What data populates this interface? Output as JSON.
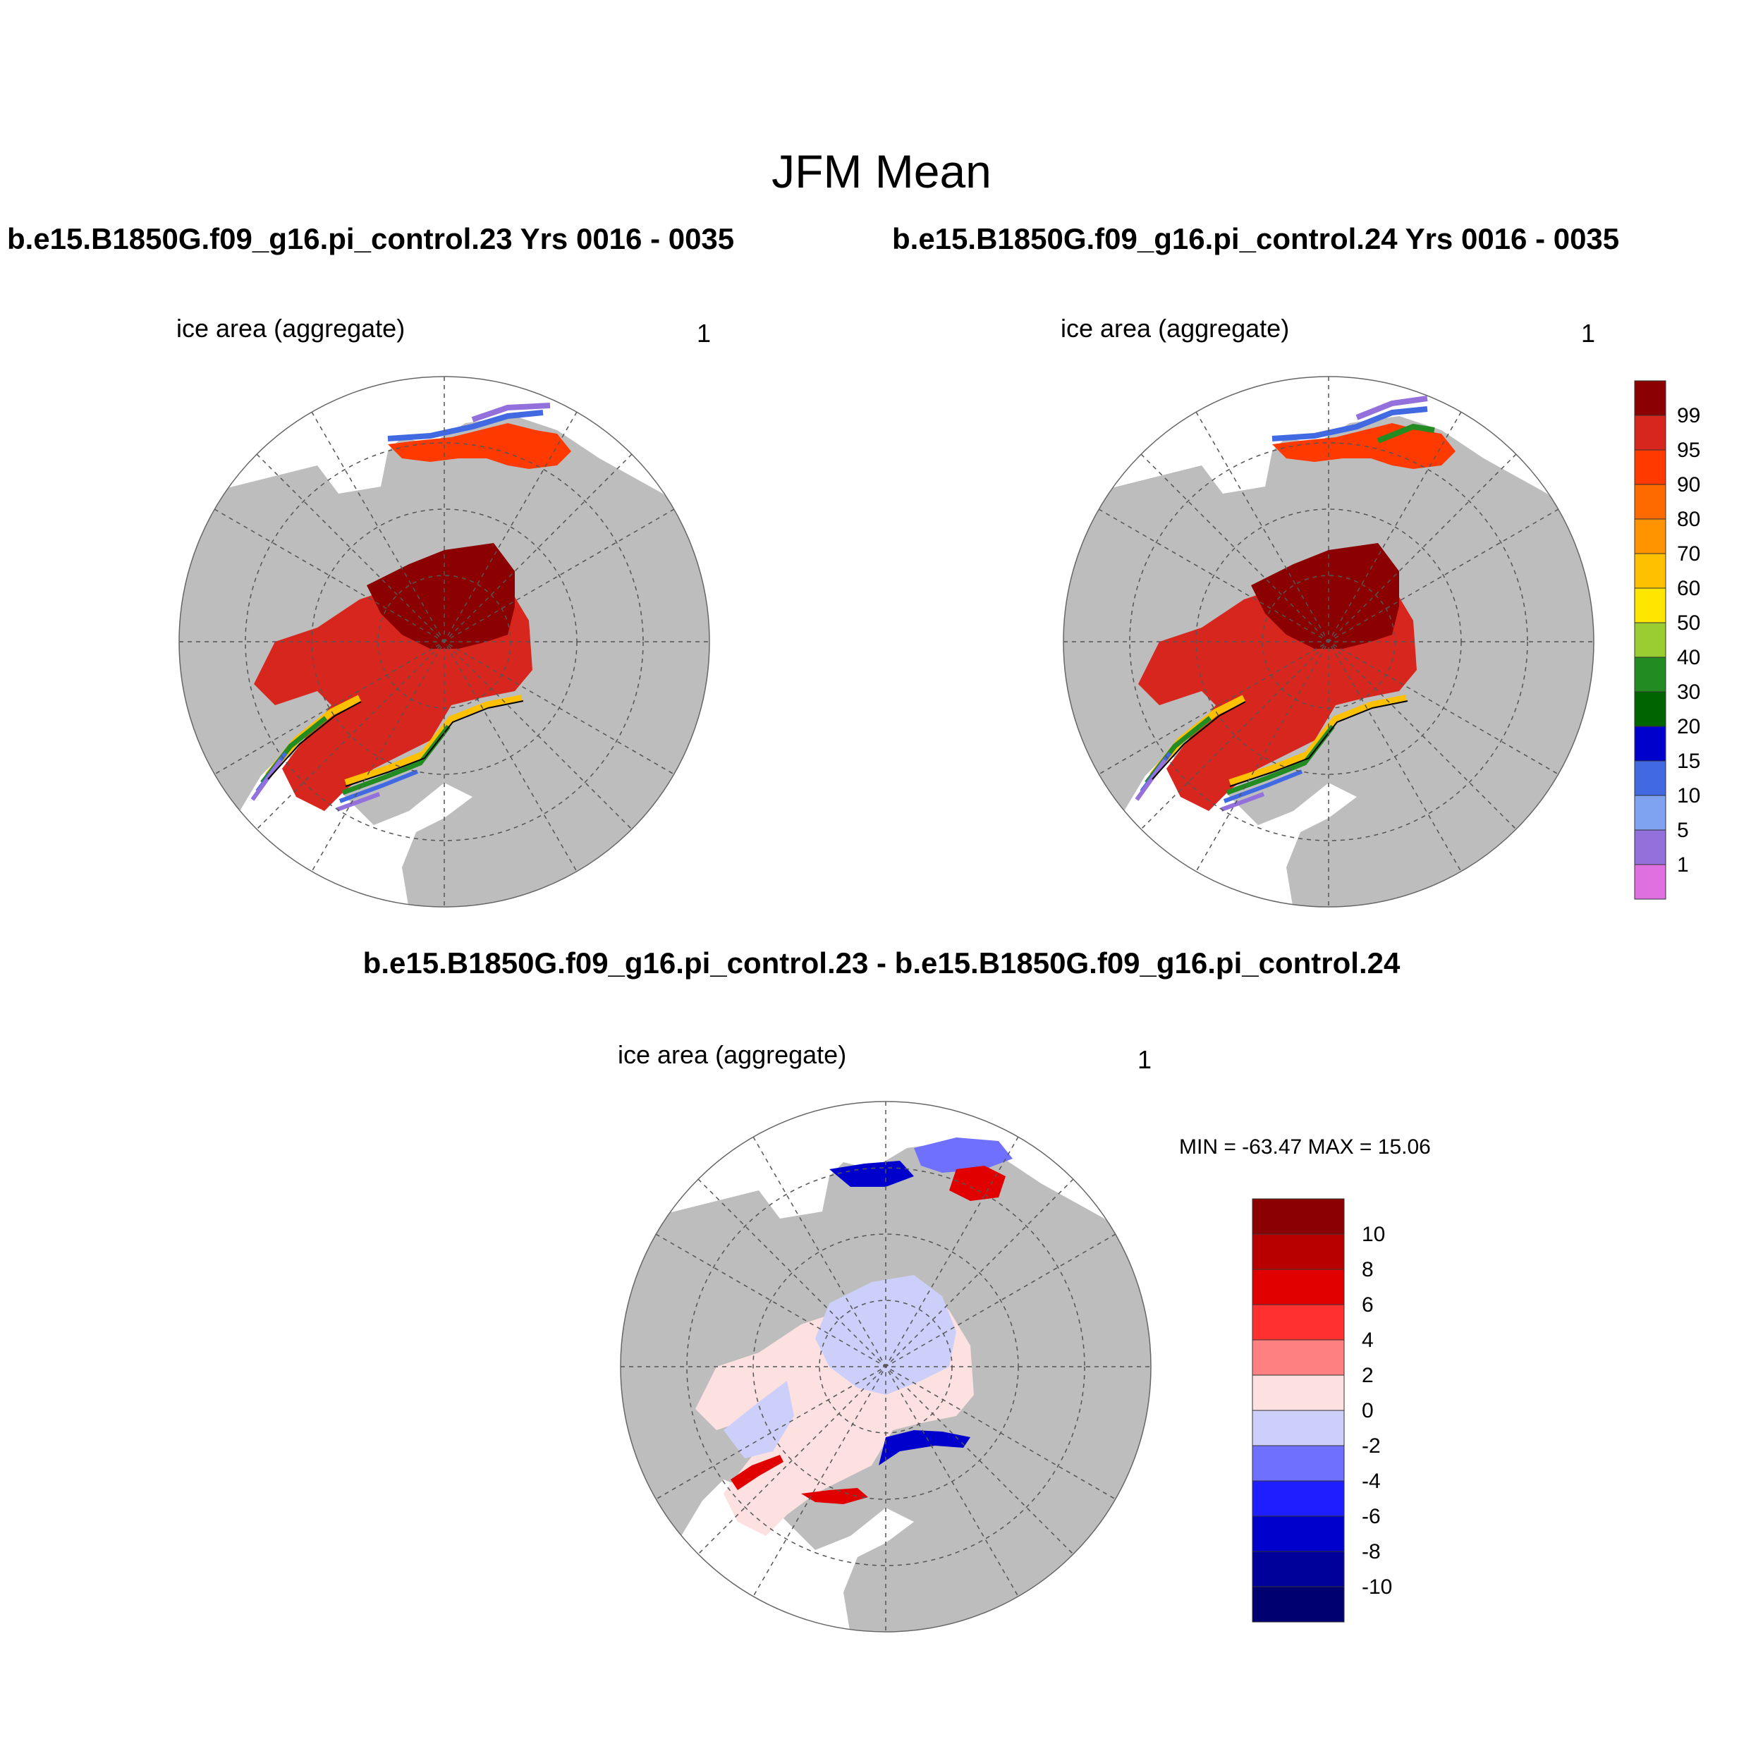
{
  "figure": {
    "title": "JFM Mean",
    "case1_title": "b.e15.B1850G.f09_g16.pi_control.23  Yrs 0016 - 0035",
    "case2_title": "b.e15.B1850G.f09_g16.pi_control.24  Yrs 0016 - 0035",
    "diff_title": "b.e15.B1850G.f09_g16.pi_control.23 - b.e15.B1850G.f09_g16.pi_control.24"
  },
  "panels": [
    {
      "variable": "ice area  (aggregate)",
      "units": "1"
    },
    {
      "variable": "ice area  (aggregate)",
      "units": "1"
    },
    {
      "variable": "ice area  (aggregate)",
      "units": "1",
      "minmax": "MIN = -63.47 MAX =  15.06"
    }
  ],
  "colorbar_main": {
    "labels": [
      "99",
      "95",
      "90",
      "80",
      "70",
      "60",
      "50",
      "40",
      "30",
      "20",
      "15",
      "10",
      "5",
      "1"
    ],
    "colors": [
      "#8b0000",
      "#d7261e",
      "#ff3a00",
      "#ff6a00",
      "#ff9400",
      "#ffc000",
      "#ffe600",
      "#9acd32",
      "#228b22",
      "#006400",
      "#0000cd",
      "#4169e1",
      "#7fa3f0",
      "#9370db",
      "#e070e0"
    ]
  },
  "colorbar_diff": {
    "labels": [
      "10",
      "8",
      "6",
      "4",
      "2",
      "0",
      "-2",
      "-4",
      "-6",
      "-8",
      "-10"
    ],
    "colors": [
      "#8b0000",
      "#b80000",
      "#e00000",
      "#ff3030",
      "#ff8080",
      "#fde0e0",
      "#cccffa",
      "#7070ff",
      "#1e1eff",
      "#0000cd",
      "#00009a",
      "#000070"
    ]
  },
  "map_colors": {
    "land": "#bdbdbd",
    "ocean": "#ffffff",
    "core_ice": "#8b0000",
    "pack_ice": "#d7261e",
    "edge_inner": "#ffc000",
    "edge_green": "#228b22",
    "edge_blue": "#4169e1",
    "edge_purple": "#9370db",
    "diff_pink": "#fde0e0",
    "diff_lightblue": "#cccffa",
    "diff_red": "#e00000",
    "diff_darkblue": "#0000cd"
  }
}
